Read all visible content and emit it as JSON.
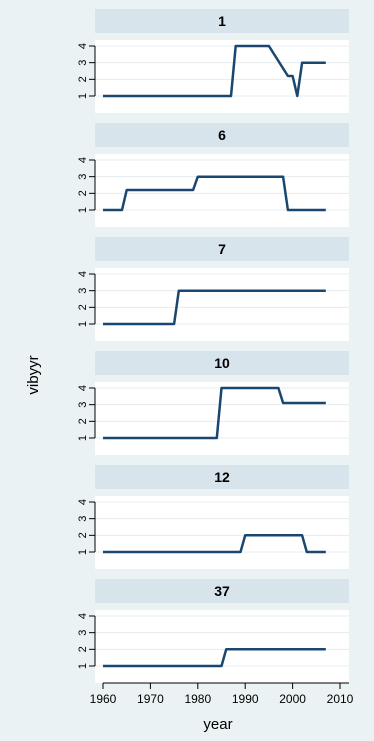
{
  "chart_data": {
    "type": "line",
    "xlabel": "year",
    "ylabel": "vibyyr",
    "xlim": [
      1960,
      2010
    ],
    "xticks": [
      1960,
      1970,
      1980,
      1990,
      2000,
      2010
    ],
    "ylim": [
      1,
      4
    ],
    "yticks": [
      1,
      2,
      3,
      4
    ],
    "grid": true,
    "colors": {
      "line": "#1a476f",
      "panel_header": "#d8e4eb",
      "plot_bg": "#ffffff",
      "background": "#eaf2f3",
      "grid": "#e6ecef"
    },
    "panels": [
      {
        "title": "1",
        "x": [
          1960,
          1987,
          1988,
          1995,
          1999,
          2000,
          2001,
          2002,
          2007
        ],
        "y": [
          1,
          1,
          4,
          4,
          2.2,
          2.2,
          1,
          3,
          3
        ]
      },
      {
        "title": "6",
        "x": [
          1960,
          1964,
          1965,
          1979,
          1980,
          1998,
          1999,
          2007
        ],
        "y": [
          1,
          1,
          2.2,
          2.2,
          3,
          3,
          1,
          1
        ]
      },
      {
        "title": "7",
        "x": [
          1960,
          1975,
          1976,
          2007
        ],
        "y": [
          1,
          1,
          3,
          3
        ]
      },
      {
        "title": "10",
        "x": [
          1960,
          1984,
          1985,
          1997,
          1998,
          2007
        ],
        "y": [
          1,
          1,
          4,
          4,
          3.1,
          3.1
        ]
      },
      {
        "title": "12",
        "x": [
          1960,
          1989,
          1990,
          2002,
          2003,
          2007
        ],
        "y": [
          1,
          1,
          2,
          2,
          1,
          1
        ]
      },
      {
        "title": "37",
        "x": [
          1960,
          1985,
          1986,
          2007
        ],
        "y": [
          1,
          1,
          2,
          2
        ]
      }
    ]
  }
}
